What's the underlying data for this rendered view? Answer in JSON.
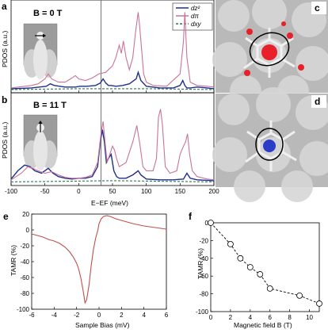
{
  "panels": {
    "a": {
      "letter": "a",
      "field_label": "B = 0 T"
    },
    "b": {
      "letter": "b",
      "field_label": "B = 11 T"
    },
    "c": {
      "letter": "c"
    },
    "d": {
      "letter": "d"
    },
    "e": {
      "letter": "e"
    },
    "f": {
      "letter": "f"
    }
  },
  "chart_data": [
    {
      "id": "a",
      "type": "line",
      "ylabel": "PDOS (a.u.)",
      "xlim": [
        -100,
        200
      ],
      "xticks": [],
      "vline_x": 33,
      "legend": [
        "dz²",
        "dπ",
        "dxy"
      ],
      "series": [
        {
          "name": "dz²",
          "color": "#1f2f8a",
          "x": [
            -100,
            -70,
            -48,
            -42,
            -36,
            -20,
            -5,
            2,
            12,
            25,
            32,
            36,
            40,
            44,
            48,
            55,
            65,
            75,
            85,
            88,
            92,
            100,
            120,
            140,
            150,
            154,
            157,
            160,
            165,
            175,
            190,
            200
          ],
          "y": [
            0.02,
            0.03,
            0.05,
            0.08,
            0.06,
            0.04,
            0.04,
            0.05,
            0.05,
            0.06,
            0.09,
            0.14,
            0.09,
            0.06,
            0.06,
            0.05,
            0.06,
            0.08,
            0.14,
            0.22,
            0.12,
            0.05,
            0.03,
            0.03,
            0.06,
            0.12,
            0.06,
            0.03,
            0.03,
            0.04,
            0.03,
            0.02
          ]
        },
        {
          "name": "dπ",
          "color": "#c9739a",
          "x": [
            -100,
            -70,
            -60,
            -50,
            -45,
            -40,
            -30,
            -20,
            -10,
            -5,
            0,
            10,
            20,
            30,
            40,
            50,
            55,
            60,
            63,
            66,
            70,
            75,
            80,
            84,
            88,
            90,
            93,
            96,
            100,
            110,
            130,
            150,
            155,
            157,
            160,
            165,
            175,
            190,
            200
          ],
          "y": [
            0.03,
            0.06,
            0.08,
            0.14,
            0.2,
            0.14,
            0.1,
            0.1,
            0.15,
            0.18,
            0.14,
            0.12,
            0.15,
            0.2,
            0.22,
            0.3,
            0.4,
            0.55,
            0.45,
            0.6,
            0.4,
            0.25,
            0.4,
            0.7,
            0.95,
            0.8,
            0.5,
            0.2,
            0.1,
            0.06,
            0.05,
            0.2,
            0.6,
            0.95,
            0.4,
            0.1,
            0.06,
            0.05,
            0.04
          ]
        },
        {
          "name": "dxy",
          "color": "#2a7a4e",
          "dashed": true,
          "x": [
            -100,
            -50,
            0,
            50,
            100,
            150,
            200
          ],
          "y": [
            0.01,
            0.015,
            0.02,
            0.02,
            0.02,
            0.015,
            0.01
          ]
        }
      ]
    },
    {
      "id": "b",
      "type": "line",
      "ylabel": "PDOS (a.u.)",
      "xlabel": "E−EF (meV)",
      "xlim": [
        -100,
        200
      ],
      "xticks": [
        -100,
        -50,
        0,
        50,
        100,
        150,
        200
      ],
      "vline_x": 33,
      "series": [
        {
          "name": "dz²",
          "color": "#1f2f8a",
          "x": [
            -100,
            -90,
            -80,
            -72,
            -65,
            -55,
            -45,
            -38,
            -30,
            -20,
            -10,
            0,
            10,
            20,
            28,
            32,
            35,
            38,
            41,
            44,
            48,
            52,
            56,
            60,
            70,
            80,
            88,
            92,
            100,
            120,
            140,
            155,
            160,
            165,
            175,
            200
          ],
          "y": [
            0.05,
            0.15,
            0.22,
            0.2,
            0.15,
            0.12,
            0.18,
            0.12,
            0.08,
            0.06,
            0.05,
            0.06,
            0.06,
            0.08,
            0.2,
            0.5,
            0.65,
            0.5,
            0.25,
            0.3,
            0.35,
            0.15,
            0.08,
            0.06,
            0.06,
            0.1,
            0.15,
            0.1,
            0.05,
            0.04,
            0.04,
            0.05,
            0.12,
            0.06,
            0.04,
            0.03
          ]
        },
        {
          "name": "dπ",
          "color": "#c9739a",
          "x": [
            -100,
            -85,
            -75,
            -68,
            -60,
            -50,
            -40,
            -30,
            -20,
            -10,
            0,
            10,
            20,
            28,
            33,
            36,
            39,
            42,
            46,
            50,
            53,
            56,
            60,
            70,
            80,
            86,
            90,
            95,
            100,
            110,
            115,
            118,
            121,
            124,
            128,
            135,
            145,
            150,
            155,
            158,
            161,
            164,
            168,
            175,
            190,
            200
          ],
          "y": [
            0.04,
            0.12,
            0.2,
            0.18,
            0.15,
            0.12,
            0.14,
            0.1,
            0.07,
            0.06,
            0.06,
            0.07,
            0.1,
            0.25,
            0.6,
            0.75,
            0.5,
            0.25,
            0.35,
            0.45,
            0.4,
            0.3,
            0.2,
            0.25,
            0.5,
            0.7,
            0.5,
            0.2,
            0.15,
            0.15,
            0.3,
            0.8,
            0.9,
            0.7,
            0.2,
            0.12,
            0.15,
            0.35,
            0.45,
            0.5,
            0.6,
            0.35,
            0.15,
            0.08,
            0.05,
            0.04
          ]
        },
        {
          "name": "dxy",
          "color": "#2a7a4e",
          "dashed": true,
          "x": [
            -100,
            -50,
            0,
            50,
            100,
            150,
            200
          ],
          "y": [
            0.015,
            0.02,
            0.025,
            0.03,
            0.025,
            0.02,
            0.015
          ]
        }
      ]
    },
    {
      "id": "e",
      "type": "line",
      "xlabel": "Sample Bias (mV)",
      "ylabel": "TAMR (%)",
      "xlim": [
        -6,
        6
      ],
      "ylim": [
        -100,
        20
      ],
      "xticks": [
        -6,
        -4,
        -2,
        0,
        2,
        4,
        6
      ],
      "yticks": [
        -100,
        -80,
        -60,
        -40,
        -20,
        0,
        20
      ],
      "series": [
        {
          "name": "",
          "color": "#c0504d",
          "x": [
            -6,
            -5.5,
            -5,
            -4.5,
            -4,
            -3.5,
            -3,
            -2.6,
            -2.3,
            -2,
            -1.8,
            -1.6,
            -1.4,
            -1.25,
            -1.1,
            -0.9,
            -0.7,
            -0.5,
            -0.3,
            -0.1,
            0,
            0.2,
            0.4,
            0.7,
            1,
            1.5,
            2,
            2.5,
            3,
            4,
            5,
            6
          ],
          "y": [
            -5,
            -7,
            -9,
            -12,
            -14,
            -17,
            -22,
            -28,
            -34,
            -42,
            -50,
            -62,
            -78,
            -92,
            -88,
            -70,
            -45,
            -25,
            -10,
            0,
            8,
            14,
            17,
            18,
            17,
            14,
            12,
            10,
            8,
            5,
            3,
            1
          ]
        }
      ]
    },
    {
      "id": "f",
      "type": "scatter",
      "xlabel": "Magnetic field B (T)",
      "ylabel": "TAMR (%)",
      "xlim": [
        0,
        11
      ],
      "ylim": [
        -100,
        0
      ],
      "xticks": [
        0,
        2,
        4,
        6,
        8,
        10
      ],
      "yticks": [
        -100,
        -80,
        -60,
        -40,
        -20,
        0
      ],
      "series": [
        {
          "name": "",
          "color": "#000000",
          "dashed": true,
          "x": [
            0,
            2,
            3,
            4,
            5,
            6,
            9,
            11
          ],
          "y": [
            0,
            -24,
            -40,
            -50,
            -58,
            -74,
            -82,
            -91
          ]
        }
      ]
    }
  ]
}
